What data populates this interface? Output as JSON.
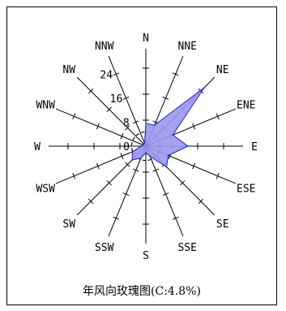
{
  "caption": "年风向玫瑰图(C:4.8%)",
  "chart_data": {
    "type": "radar",
    "title": "年风向玫瑰图(C:4.8%)",
    "calm_percent": 4.8,
    "directions": [
      "N",
      "NNE",
      "NE",
      "ENE",
      "E",
      "ESE",
      "SE",
      "SSE",
      "S",
      "SSW",
      "SW",
      "WSW",
      "W",
      "WNW",
      "NW",
      "NNW"
    ],
    "values": [
      7,
      7,
      25.5,
      9,
      13,
      7.5,
      9,
      3.5,
      2,
      4,
      6,
      4.5,
      1.5,
      1,
      1,
      1
    ],
    "radial_ticks": [
      0,
      8,
      16,
      24
    ],
    "radial_max": 24,
    "fill_color": "#9999f0",
    "stroke_color": "#2020c0"
  }
}
